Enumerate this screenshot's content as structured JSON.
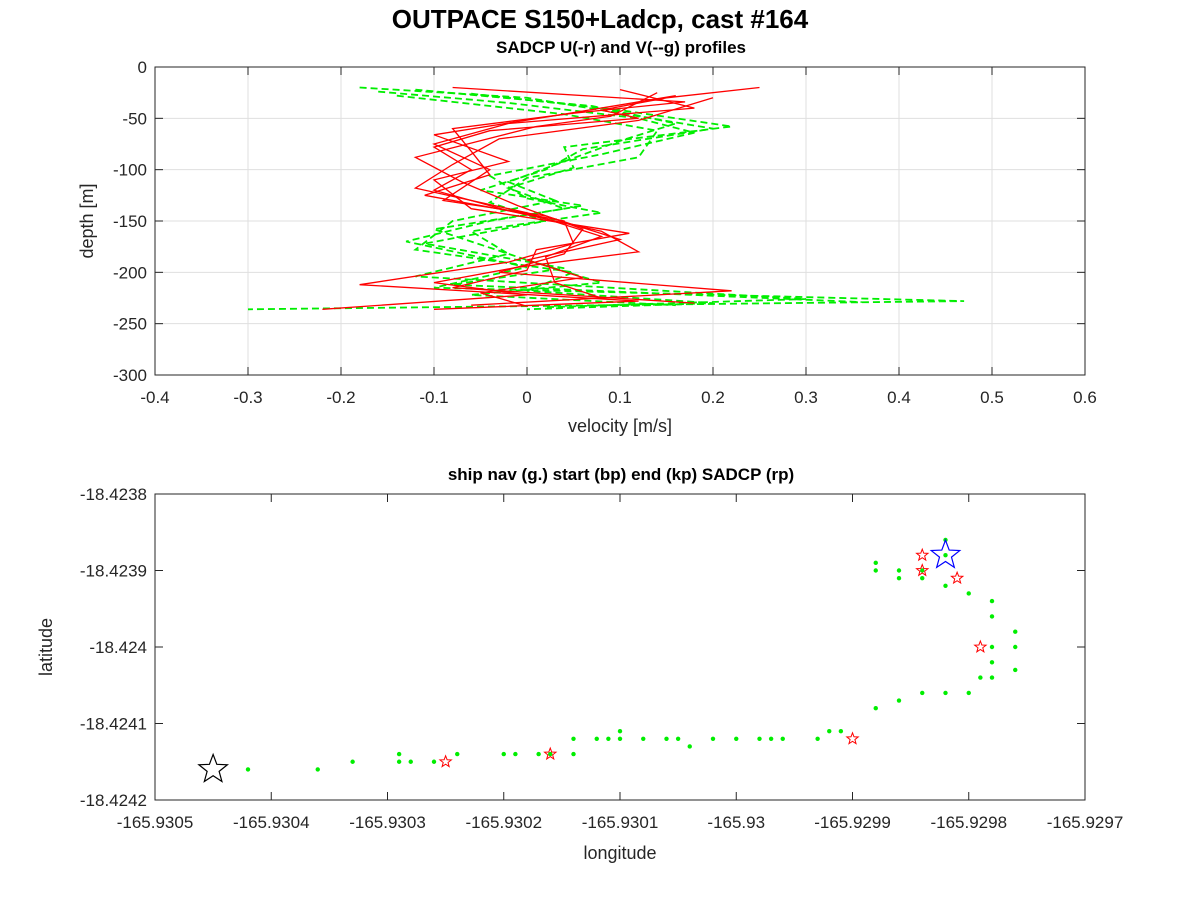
{
  "figure": {
    "suptitle": "OUTPACE S150+Ladcp, cast #164"
  },
  "chart_data": [
    {
      "type": "line",
      "title": "SADCP U(-r) and V(--g) profiles",
      "xlabel": "velocity [m/s]",
      "ylabel": "depth [m]",
      "xlim": [
        -0.4,
        0.6
      ],
      "ylim": [
        -300,
        0
      ],
      "xticks": [
        "-0.4",
        "-0.3",
        "-0.2",
        "-0.1",
        "0",
        "0.1",
        "0.2",
        "0.3",
        "0.4",
        "0.5",
        "0.6"
      ],
      "yticks": [
        "0",
        "-50",
        "-100",
        "-150",
        "-200",
        "-250",
        "-300"
      ],
      "grid": true,
      "colors": {
        "u": "#ff0000",
        "v": "#00ee00"
      },
      "series": [
        {
          "name": "U",
          "style": "solid",
          "color": "#ff0000",
          "profiles": [
            [
              [
                0.25,
                -20
              ],
              [
                0.15,
                -30
              ],
              [
                0.08,
                -42
              ],
              [
                0.12,
                -50
              ],
              [
                -0.04,
                -62
              ],
              [
                -0.1,
                -78
              ],
              [
                -0.06,
                -100
              ],
              [
                -0.1,
                -120
              ],
              [
                -0.02,
                -140
              ],
              [
                0.08,
                -160
              ],
              [
                0.12,
                -180
              ],
              [
                -0.01,
                -195
              ],
              [
                -0.1,
                -210
              ],
              [
                0.0,
                -222
              ],
              [
                -0.22,
                -236
              ]
            ],
            [
              [
                -0.08,
                -20
              ],
              [
                0.17,
                -34
              ],
              [
                0.05,
                -45
              ],
              [
                -0.08,
                -60
              ],
              [
                -0.06,
                -82
              ],
              [
                -0.04,
                -105
              ],
              [
                -0.11,
                -125
              ],
              [
                0.04,
                -150
              ],
              [
                0.05,
                -172
              ],
              [
                -0.02,
                -190
              ],
              [
                -0.18,
                -212
              ],
              [
                0.12,
                -228
              ],
              [
                -0.1,
                -236
              ]
            ],
            [
              [
                0.1,
                -22
              ],
              [
                0.18,
                -40
              ],
              [
                -0.02,
                -55
              ],
              [
                -0.1,
                -75
              ],
              [
                -0.04,
                -100
              ],
              [
                -0.09,
                -130
              ],
              [
                0.02,
                -145
              ],
              [
                0.1,
                -168
              ],
              [
                0.0,
                -188
              ],
              [
                0.06,
                -205
              ],
              [
                -0.05,
                -220
              ],
              [
                0.0,
                -233
              ]
            ],
            [
              [
                0.14,
                -25
              ],
              [
                0.09,
                -48
              ],
              [
                0.01,
                -58
              ],
              [
                -0.12,
                -88
              ],
              [
                -0.07,
                -112
              ],
              [
                -0.01,
                -135
              ],
              [
                0.06,
                -158
              ],
              [
                0.04,
                -182
              ],
              [
                -0.03,
                -200
              ],
              [
                0.22,
                -218
              ],
              [
                -0.06,
                -232
              ]
            ],
            [
              [
                0.2,
                -30
              ],
              [
                0.12,
                -52
              ],
              [
                -0.03,
                -70
              ],
              [
                -0.08,
                -95
              ],
              [
                -0.12,
                -118
              ],
              [
                0.0,
                -142
              ],
              [
                0.08,
                -165
              ],
              [
                0.02,
                -185
              ],
              [
                0.03,
                -210
              ],
              [
                0.08,
                -225
              ]
            ],
            [
              [
                0.16,
                -28
              ],
              [
                0.04,
                -46
              ],
              [
                -0.1,
                -66
              ],
              [
                -0.02,
                -92
              ],
              [
                -0.1,
                -110
              ],
              [
                -0.06,
                -138
              ],
              [
                0.11,
                -162
              ],
              [
                0.01,
                -178
              ],
              [
                0.0,
                -198
              ],
              [
                -0.08,
                -215
              ],
              [
                0.18,
                -230
              ]
            ]
          ]
        },
        {
          "name": "V",
          "style": "dashed",
          "color": "#00ee00",
          "profiles": [
            [
              [
                -0.18,
                -20
              ],
              [
                0.0,
                -30
              ],
              [
                0.1,
                -45
              ],
              [
                0.2,
                -60
              ],
              [
                0.06,
                -80
              ],
              [
                0.02,
                -100
              ],
              [
                -0.05,
                -120
              ],
              [
                0.06,
                -135
              ],
              [
                -0.04,
                -150
              ],
              [
                -0.13,
                -170
              ],
              [
                0.0,
                -195
              ],
              [
                -0.1,
                -215
              ],
              [
                0.47,
                -228
              ],
              [
                -0.3,
                -236
              ]
            ],
            [
              [
                -0.12,
                -22
              ],
              [
                0.07,
                -38
              ],
              [
                0.16,
                -55
              ],
              [
                0.1,
                -72
              ],
              [
                0.04,
                -92
              ],
              [
                -0.02,
                -112
              ],
              [
                0.03,
                -130
              ],
              [
                -0.08,
                -150
              ],
              [
                -0.12,
                -178
              ],
              [
                0.05,
                -200
              ],
              [
                0.0,
                -218
              ],
              [
                0.2,
                -230
              ],
              [
                0.0,
                -236
              ]
            ],
            [
              [
                -0.16,
                -24
              ],
              [
                -0.02,
                -35
              ],
              [
                0.12,
                -50
              ],
              [
                0.18,
                -64
              ],
              [
                0.08,
                -85
              ],
              [
                -0.04,
                -106
              ],
              [
                0.0,
                -128
              ],
              [
                0.08,
                -142
              ],
              [
                -0.06,
                -160
              ],
              [
                -0.02,
                -182
              ],
              [
                -0.12,
                -204
              ],
              [
                0.3,
                -226
              ],
              [
                0.02,
                -234
              ]
            ],
            [
              [
                -0.06,
                -26
              ],
              [
                0.1,
                -42
              ],
              [
                0.22,
                -58
              ],
              [
                0.04,
                -78
              ],
              [
                0.05,
                -98
              ],
              [
                -0.02,
                -118
              ],
              [
                0.04,
                -138
              ],
              [
                -0.1,
                -158
              ],
              [
                0.0,
                -188
              ],
              [
                0.08,
                -210
              ],
              [
                -0.06,
                -222
              ],
              [
                0.16,
                -232
              ]
            ],
            [
              [
                -0.14,
                -28
              ],
              [
                0.04,
                -46
              ],
              [
                0.14,
                -62
              ],
              [
                0.12,
                -88
              ],
              [
                0.0,
                -108
              ],
              [
                -0.04,
                -132
              ],
              [
                0.02,
                -150
              ],
              [
                -0.11,
                -172
              ],
              [
                0.04,
                -196
              ],
              [
                -0.08,
                -212
              ],
              [
                0.36,
                -229
              ]
            ]
          ]
        }
      ]
    },
    {
      "type": "scatter",
      "title": "ship nav (g.) start (bp) end (kp) SADCP (rp)",
      "xlabel": "longitude",
      "ylabel": "latitude",
      "xlim": [
        -165.9305,
        -165.9297
      ],
      "ylim": [
        -18.4242,
        -18.4238
      ],
      "xticks": [
        "-165.9305",
        "-165.9304",
        "-165.9303",
        "-165.9302",
        "-165.9301",
        "-165.93",
        "-165.9299",
        "-165.9298",
        "-165.9297"
      ],
      "yticks": [
        "-18.4238",
        "-18.4239",
        "-18.424",
        "-18.4241",
        "-18.4242"
      ],
      "grid": false,
      "colors": {
        "nav": "#00ee00",
        "start": "#0000ff",
        "end": "#000000",
        "sadcp": "#ff0000"
      },
      "nav_points": [
        [
          -165.93042,
          -18.42416
        ],
        [
          -165.93036,
          -18.42416
        ],
        [
          -165.93033,
          -18.42415
        ],
        [
          -165.93029,
          -18.42415
        ],
        [
          -165.93029,
          -18.42414
        ],
        [
          -165.93028,
          -18.42415
        ],
        [
          -165.93026,
          -18.42415
        ],
        [
          -165.93024,
          -18.42414
        ],
        [
          -165.9302,
          -18.42414
        ],
        [
          -165.93019,
          -18.42414
        ],
        [
          -165.93017,
          -18.42414
        ],
        [
          -165.93016,
          -18.42414
        ],
        [
          -165.93014,
          -18.42414
        ],
        [
          -165.93014,
          -18.42412
        ],
        [
          -165.93012,
          -18.42412
        ],
        [
          -165.93011,
          -18.42412
        ],
        [
          -165.9301,
          -18.42412
        ],
        [
          -165.9301,
          -18.42411
        ],
        [
          -165.93008,
          -18.42412
        ],
        [
          -165.93006,
          -18.42412
        ],
        [
          -165.93005,
          -18.42412
        ],
        [
          -165.93004,
          -18.42413
        ],
        [
          -165.93002,
          -18.42412
        ],
        [
          -165.93,
          -18.42412
        ],
        [
          -165.92998,
          -18.42412
        ],
        [
          -165.92997,
          -18.42412
        ],
        [
          -165.92996,
          -18.42412
        ],
        [
          -165.92993,
          -18.42412
        ],
        [
          -165.92992,
          -18.42411
        ],
        [
          -165.92991,
          -18.42411
        ],
        [
          -165.92988,
          -18.42408
        ],
        [
          -165.92986,
          -18.42407
        ],
        [
          -165.92984,
          -18.42406
        ],
        [
          -165.92982,
          -18.42406
        ],
        [
          -165.9298,
          -18.42406
        ],
        [
          -165.92979,
          -18.42404
        ],
        [
          -165.92978,
          -18.42404
        ],
        [
          -165.92976,
          -18.42403
        ],
        [
          -165.92978,
          -18.42402
        ],
        [
          -165.92978,
          -18.424
        ],
        [
          -165.92976,
          -18.424
        ],
        [
          -165.92976,
          -18.42398
        ],
        [
          -165.92978,
          -18.42396
        ],
        [
          -165.92978,
          -18.42394
        ],
        [
          -165.9298,
          -18.42393
        ],
        [
          -165.92982,
          -18.42392
        ],
        [
          -165.92984,
          -18.42391
        ],
        [
          -165.92986,
          -18.42391
        ],
        [
          -165.92988,
          -18.4239
        ],
        [
          -165.92988,
          -18.42389
        ],
        [
          -165.92986,
          -18.4239
        ],
        [
          -165.92984,
          -18.4239
        ],
        [
          -165.92982,
          -18.42388
        ],
        [
          -165.92982,
          -18.42386
        ]
      ],
      "start_point": [
        -165.92982,
        -18.42388
      ],
      "end_point": [
        -165.93045,
        -18.42416
      ],
      "sadcp_points": [
        [
          -165.92984,
          -18.42388
        ],
        [
          -165.92984,
          -18.4239
        ],
        [
          -165.92981,
          -18.42391
        ],
        [
          -165.92979,
          -18.424
        ],
        [
          -165.9299,
          -18.42412
        ],
        [
          -165.93016,
          -18.42414
        ],
        [
          -165.93025,
          -18.42415
        ]
      ]
    }
  ]
}
